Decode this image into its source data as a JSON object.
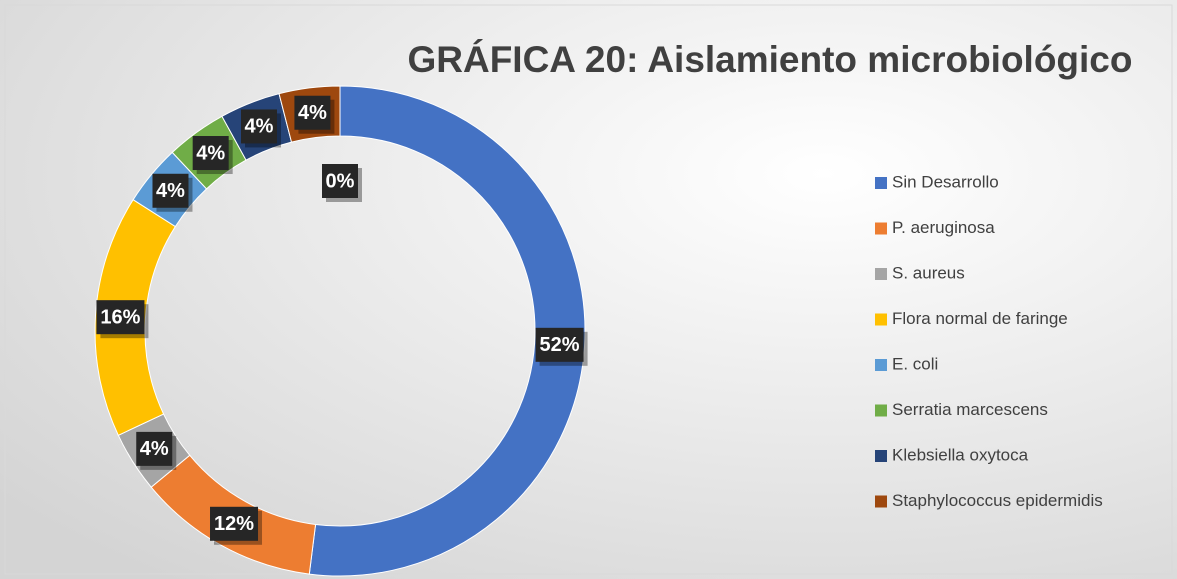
{
  "chart_data": {
    "type": "donut",
    "title": "GRÁFICA 20: Aislamiento microbiológico",
    "categories": [
      "Sin Desarrollo",
      "P. aeruginosa",
      "S. aureus",
      "Flora normal de faringe",
      "E. coli",
      "Serratia marcescens",
      "Klebsiella oxytoca",
      "Staphylococcus epidermidis",
      null
    ],
    "values": [
      52,
      12,
      4,
      16,
      4,
      4,
      4,
      4,
      0
    ],
    "value_labels": [
      "52%",
      "12%",
      "4%",
      "16%",
      "4%",
      "4%",
      "4%",
      "4%",
      "0%"
    ],
    "colors": [
      "#4472c4",
      "#ed7d31",
      "#a5a5a5",
      "#ffc000",
      "#5b9bd5",
      "#70ad47",
      "#264478",
      "#9e480e",
      "#636363"
    ],
    "legend": "right"
  }
}
